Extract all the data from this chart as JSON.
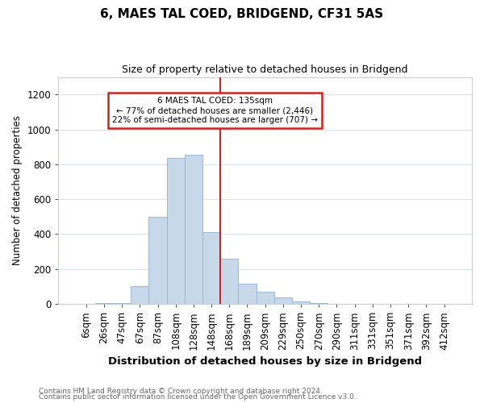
{
  "title": "6, MAES TAL COED, BRIDGEND, CF31 5AS",
  "subtitle": "Size of property relative to detached houses in Bridgend",
  "xlabel": "Distribution of detached houses by size in Bridgend",
  "ylabel": "Number of detached properties",
  "bar_color": "#c8d8eb",
  "bar_edge_color": "#9ab8d0",
  "background_color": "#ffffff",
  "grid_color": "#d8e4f0",
  "annotation_box_color": "#ffffff",
  "annotation_box_edge": "#cc2222",
  "vline_color": "#cc2222",
  "categories": [
    "6sqm",
    "26sqm",
    "47sqm",
    "67sqm",
    "87sqm",
    "108sqm",
    "128sqm",
    "148sqm",
    "168sqm",
    "189sqm",
    "209sqm",
    "229sqm",
    "250sqm",
    "270sqm",
    "290sqm",
    "311sqm",
    "331sqm",
    "351sqm",
    "371sqm",
    "392sqm",
    "412sqm"
  ],
  "values": [
    2,
    3,
    3,
    100,
    500,
    835,
    855,
    410,
    260,
    115,
    70,
    35,
    15,
    5,
    2,
    2,
    1,
    1,
    1,
    1,
    1
  ],
  "annotation_line1": "6 MAES TAL COED: 135sqm",
  "annotation_line2": "← 77% of detached houses are smaller (2,446)",
  "annotation_line3": "22% of semi-detached houses are larger (707) →",
  "vline_x_index": 7.5,
  "ylim": [
    0,
    1300
  ],
  "yticks": [
    0,
    200,
    400,
    600,
    800,
    1000,
    1200
  ],
  "footer1": "Contains HM Land Registry data © Crown copyright and database right 2024.",
  "footer2": "Contains public sector information licensed under the Open Government Licence v3.0."
}
